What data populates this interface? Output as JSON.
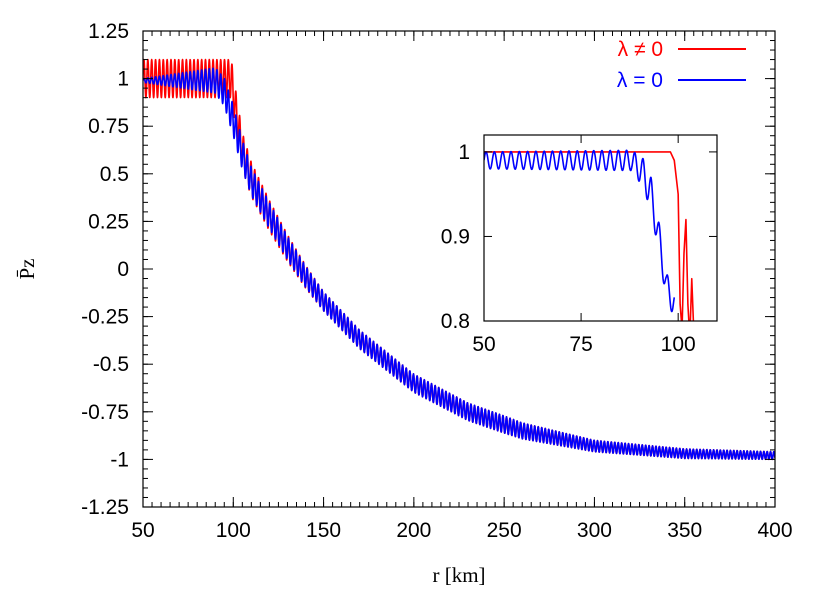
{
  "chart_data": [
    {
      "type": "line",
      "xlabel": "r [km]",
      "ylabel": "P̄z",
      "xlim": [
        50,
        400
      ],
      "ylim": [
        -1.25,
        1.25
      ],
      "xticks": [
        "50",
        "100",
        "150",
        "200",
        "250",
        "300",
        "350",
        "400"
      ],
      "yticks": [
        "1.25",
        "1",
        "0.75",
        "0.5",
        "0.25",
        "0",
        "-0.25",
        "-0.5",
        "-0.75",
        "-1",
        "-1.25"
      ],
      "legend_position": "top-right",
      "grid": false,
      "series": [
        {
          "name": "λ ≠ 0",
          "color": "#ff0000",
          "mean_curve": {
            "x": [
              50,
              99,
              100,
              105,
              110,
              120,
              130,
              140,
              150,
              170,
              200,
              230,
              260,
              300,
              350,
              400
            ],
            "y": [
              1.0,
              1.0,
              0.92,
              0.62,
              0.47,
              0.28,
              0.11,
              -0.04,
              -0.17,
              -0.37,
              -0.6,
              -0.75,
              -0.85,
              -0.93,
              -0.97,
              -0.98
            ]
          },
          "oscillation_amplitude": {
            "x": [
              100,
              150,
              250,
              300,
              400
            ],
            "y": [
              0.1,
              0.05,
              0.045,
              0.03,
              0.02
            ]
          }
        },
        {
          "name": "λ = 0",
          "color": "#0000ff",
          "mean_curve": {
            "x": [
              50,
              90,
              95,
              100,
              105,
              110,
              120,
              130,
              140,
              150,
              170,
              200,
              230,
              260,
              300,
              350,
              400
            ],
            "y": [
              0.99,
              0.99,
              0.93,
              0.78,
              0.6,
              0.46,
              0.28,
              0.11,
              -0.04,
              -0.17,
              -0.37,
              -0.6,
              -0.75,
              -0.85,
              -0.93,
              -0.97,
              -0.98
            ]
          },
          "oscillation_amplitude": {
            "x": [
              50,
              100,
              150,
              250,
              300,
              400
            ],
            "y": [
              0.01,
              0.08,
              0.05,
              0.045,
              0.03,
              0.02
            ]
          }
        }
      ]
    },
    {
      "type": "line",
      "role": "inset",
      "xlim": [
        50,
        110
      ],
      "ylim": [
        0.8,
        1.02
      ],
      "xticks": [
        "50",
        "75",
        "100"
      ],
      "yticks": [
        "1",
        "0.9",
        "0.8"
      ],
      "grid": false,
      "series": [
        {
          "name": "λ ≠ 0",
          "color": "#ff0000",
          "points": {
            "x": [
              50,
              98,
              99,
              100,
              100.5,
              101,
              101.5,
              102,
              102.5,
              103,
              103.5,
              104
            ],
            "y": [
              1.0,
              1.0,
              0.99,
              0.95,
              0.82,
              0.79,
              0.88,
              0.92,
              0.82,
              0.78,
              0.85,
              0.79
            ]
          }
        },
        {
          "name": "λ = 0",
          "color": "#0000ff",
          "mean_curve": {
            "x": [
              50,
              88,
              91,
              93,
              95,
              96,
              97,
              98,
              99
            ],
            "y": [
              0.99,
              0.99,
              0.975,
              0.95,
              0.9,
              0.87,
              0.84,
              0.83,
              0.82
            ]
          },
          "oscillation_amplitude": {
            "x": [
              50,
              88,
              93,
              99
            ],
            "y": [
              0.01,
              0.012,
              0.02,
              0.015
            ]
          }
        }
      ]
    }
  ]
}
